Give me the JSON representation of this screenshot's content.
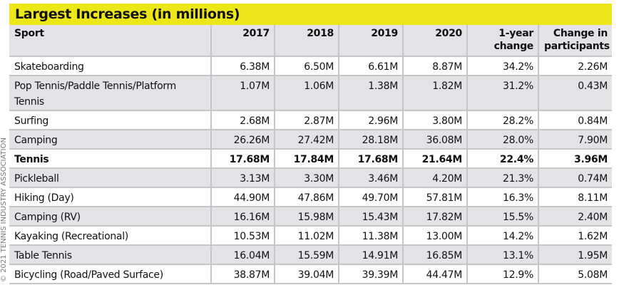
{
  "watermark": "© 2021 TENNIS INDUSTRY ASSOCIATION",
  "title": "Largest Increases (in millions)",
  "colors": {
    "title_bg": "#ede619",
    "alt_row": "#e3e3e5"
  },
  "columns": [
    "Sport",
    "2017",
    "2018",
    "2019",
    "2020",
    "1-year change",
    "Change in participants"
  ],
  "rows": [
    [
      "Skateboarding",
      "6.38M",
      "6.50M",
      "6.61M",
      "8.87M",
      "34.2%",
      "2.26M"
    ],
    [
      "Pop Tennis/Paddle Tennis/Platform Tennis",
      "1.07M",
      "1.06M",
      "1.38M",
      "1.82M",
      "31.2%",
      "0.43M"
    ],
    [
      "Surfing",
      "2.68M",
      "2.87M",
      "2.96M",
      "3.80M",
      "28.2%",
      "0.84M"
    ],
    [
      "Camping",
      "26.26M",
      "27.42M",
      "28.18M",
      "36.08M",
      "28.0%",
      "7.90M"
    ],
    [
      "Tennis",
      "17.68M",
      "17.84M",
      "17.68M",
      "21.64M",
      "22.4%",
      "3.96M"
    ],
    [
      "Pickleball",
      "3.13M",
      "3.30M",
      "3.46M",
      "4.20M",
      "21.3%",
      "0.74M"
    ],
    [
      "Hiking (Day)",
      "44.90M",
      "47.86M",
      "49.70M",
      "57.81M",
      "16.3%",
      "8.11M"
    ],
    [
      "Camping (RV)",
      "16.16M",
      "15.98M",
      "15.43M",
      "17.82M",
      "15.5%",
      "2.40M"
    ],
    [
      "Kayaking (Recreational)",
      "10.53M",
      "11.02M",
      "11.38M",
      "13.00M",
      "14.2%",
      "1.62M"
    ],
    [
      "Table Tennis",
      "16.04M",
      "15.59M",
      "14.91M",
      "16.85M",
      "13.1%",
      "1.95M"
    ],
    [
      "Bicycling (Road/Paved Surface)",
      "38.87M",
      "39.04M",
      "39.39M",
      "44.47M",
      "12.9%",
      "5.08M"
    ]
  ],
  "highlight_row": "Tennis"
}
